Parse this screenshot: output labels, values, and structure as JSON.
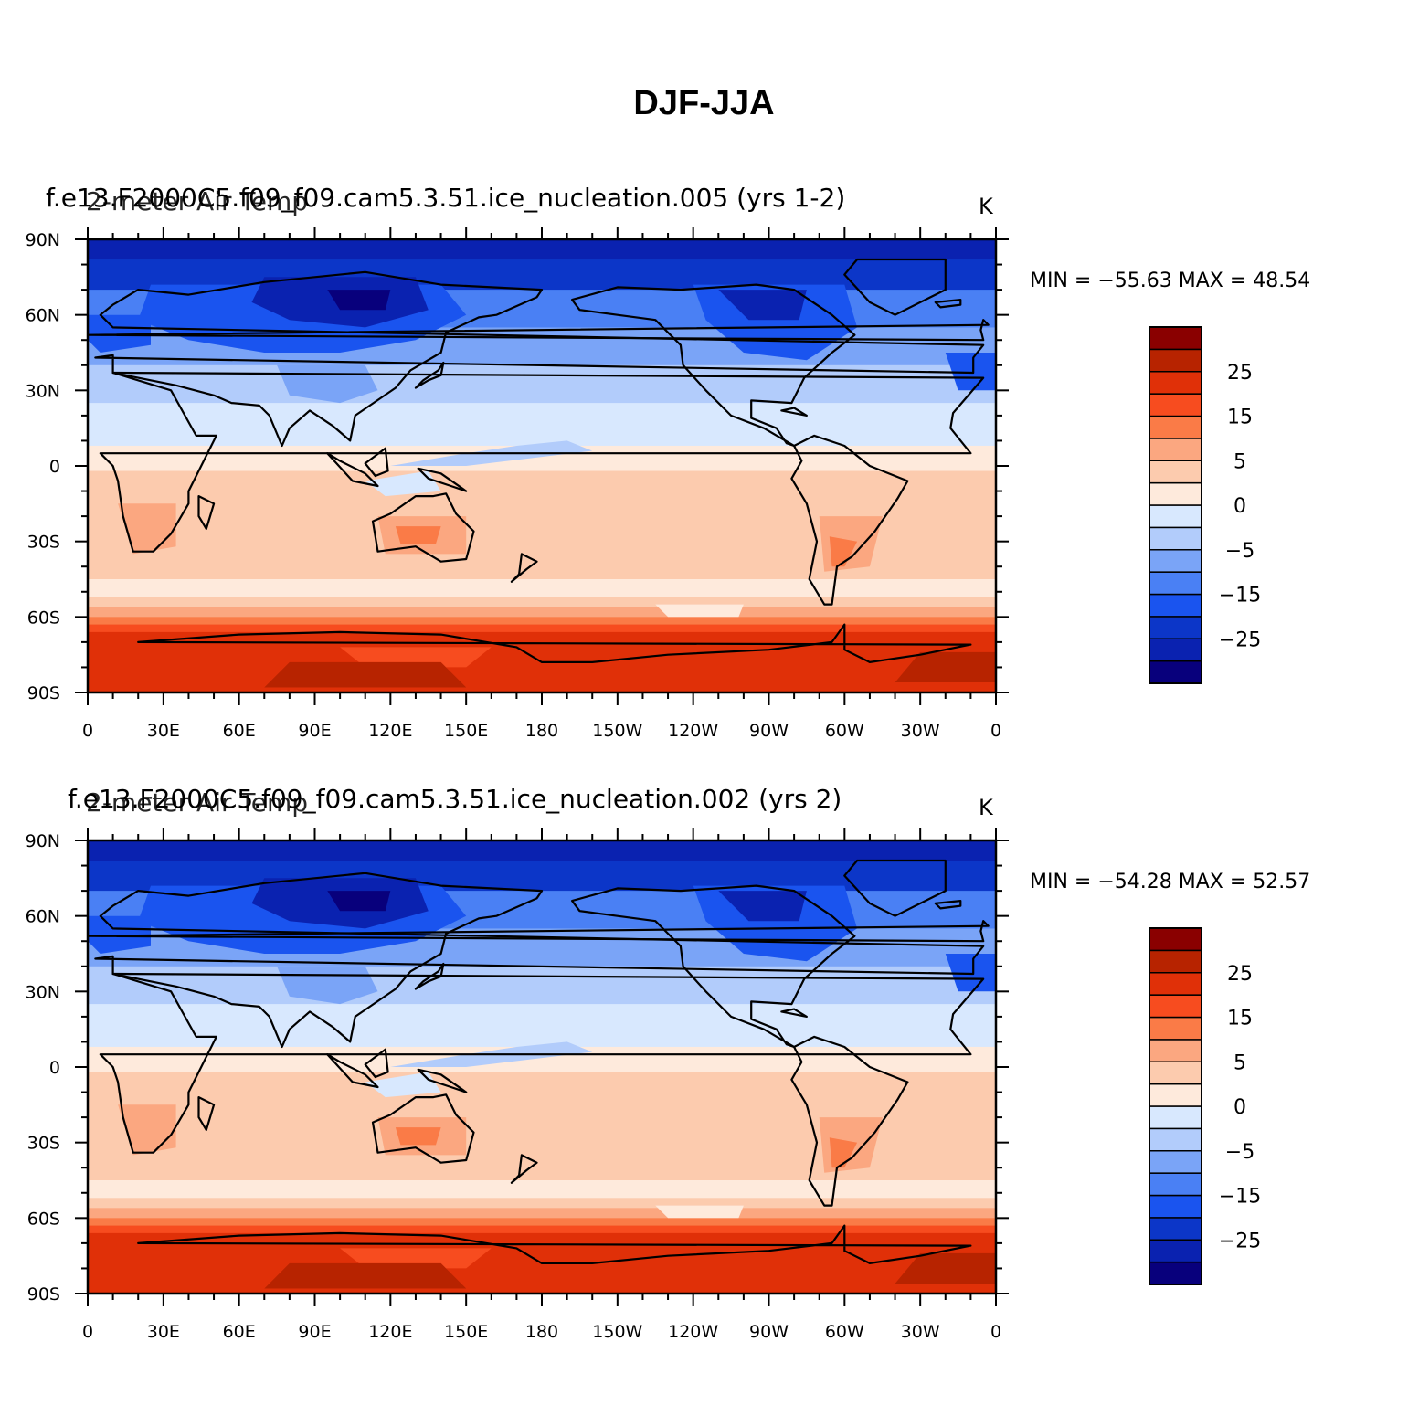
{
  "title": "DJF-JJA",
  "colors": [
    "#08007c",
    "#0a22b0",
    "#0c36c8",
    "#1a54ef",
    "#4a80f4",
    "#7aa4f7",
    "#b2ccfb",
    "#d8e8fe",
    "#feeadc",
    "#fccbae",
    "#fba780",
    "#fa7b47",
    "#f74c1f",
    "#e03008",
    "#b72300",
    "#8a0000"
  ],
  "colorbar": {
    "labels": [
      "25",
      "15",
      "5",
      "0",
      "−5",
      "−15",
      "−25"
    ]
  },
  "axes": {
    "lat_labels": [
      "90N",
      "60N",
      "30N",
      "0",
      "30S",
      "60S",
      "90S"
    ],
    "lon_labels": [
      "0",
      "30E",
      "60E",
      "90E",
      "120E",
      "150E",
      "180",
      "150W",
      "120W",
      "90W",
      "60W",
      "30W",
      "0"
    ]
  },
  "panels": [
    {
      "case_title": "f.e13.F2000C5.f09_f09.cam5.3.51.ice_nucleation.005 (yrs 1-2)",
      "var_title": "2-meter Air Temp",
      "units": "K",
      "min_max": "MIN = −55.63 MAX =   48.54"
    },
    {
      "case_title": "f.e13.F2000C5.f09_f09.cam5.3.51.ice_nucleation.002 (yrs 2)",
      "var_title": "2-meter Air Temp",
      "units": "K",
      "min_max": "MIN = −54.28 MAX =   52.57"
    }
  ]
}
